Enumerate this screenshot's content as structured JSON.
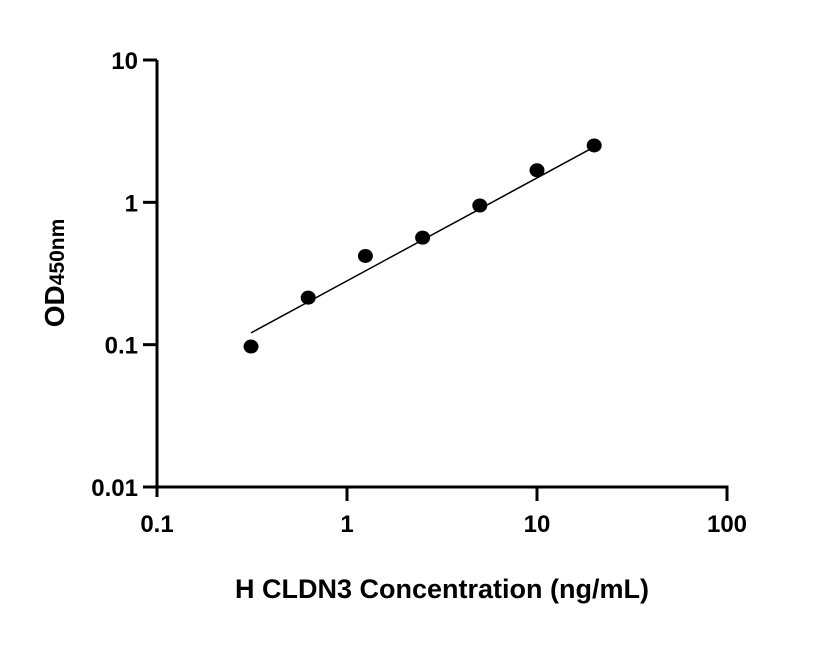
{
  "chart_data": {
    "type": "scatter",
    "title": "",
    "xlabel": "H CLDN3 Concentration (ng/mL)",
    "ylabel_main": "OD",
    "ylabel_sub": "450nm",
    "x_scale": "log",
    "y_scale": "log",
    "xlim": [
      0.1,
      100
    ],
    "ylim": [
      0.01,
      10
    ],
    "x_ticks": [
      "0.1",
      "1",
      "10",
      "100"
    ],
    "y_ticks": [
      "0.01",
      "0.1",
      "1",
      "10"
    ],
    "grid": false,
    "x": [
      0.3125,
      0.625,
      1.25,
      2.5,
      5,
      10,
      20
    ],
    "y": [
      0.097,
      0.214,
      0.42,
      0.565,
      0.95,
      1.68,
      2.51
    ],
    "fit_line": {
      "x": [
        0.3125,
        20
      ],
      "y": [
        0.121,
        2.45
      ]
    },
    "marker_color": "#000000"
  }
}
